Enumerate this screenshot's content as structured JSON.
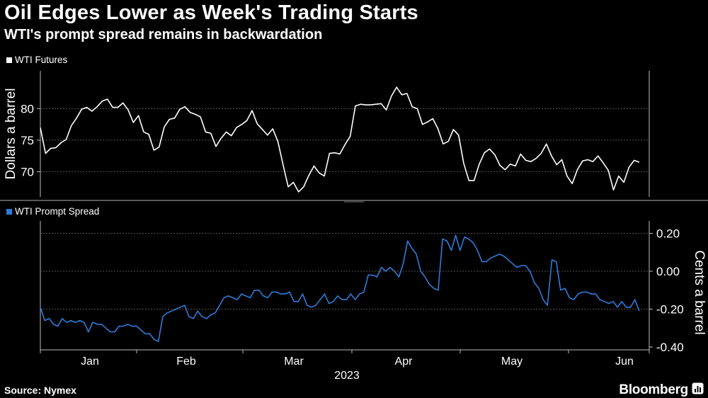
{
  "title": "Oil Edges Lower as Week's Trading Starts",
  "subtitle": "WTI's prompt spread remains in backwardation",
  "source": "Source: Nymex",
  "brand": "Bloomberg",
  "colors": {
    "background": "#000000",
    "futures": "#ffffff",
    "spread": "#2f7bd9",
    "grid": "#555555"
  },
  "chart_data": [
    {
      "type": "line",
      "series": [
        {
          "name": "WTI Futures",
          "color": "#ffffff",
          "values": [
            77.0,
            72.9,
            73.7,
            73.8,
            74.6,
            75.1,
            77.3,
            78.5,
            79.9,
            80.2,
            79.6,
            80.3,
            81.2,
            81.5,
            80.2,
            80.2,
            80.9,
            79.8,
            77.8,
            78.9,
            76.3,
            75.9,
            73.4,
            73.9,
            77.1,
            78.3,
            78.5,
            79.9,
            80.3,
            79.4,
            79.1,
            78.7,
            76.3,
            76.1,
            74.0,
            75.3,
            76.3,
            75.7,
            77.0,
            77.5,
            78.1,
            79.7,
            77.6,
            76.7,
            75.8,
            76.8,
            74.8,
            71.1,
            67.6,
            68.3,
            66.8,
            67.6,
            69.4,
            70.9,
            69.8,
            69.3,
            72.9,
            73.0,
            72.8,
            74.3,
            75.6,
            80.4,
            80.7,
            80.6,
            80.6,
            80.7,
            80.8,
            79.8,
            82.0,
            83.4,
            82.2,
            82.4,
            80.3,
            80.0,
            77.5,
            77.9,
            78.4,
            76.8,
            74.4,
            74.8,
            76.7,
            75.8,
            71.3,
            68.6,
            68.6,
            71.2,
            73.0,
            73.6,
            72.7,
            71.0,
            70.3,
            71.2,
            70.9,
            72.8,
            71.8,
            71.6,
            72.1,
            72.9,
            74.4,
            72.5,
            71.1,
            71.9,
            69.3,
            68.1,
            70.3,
            71.7,
            71.9,
            71.6,
            72.5,
            71.4,
            70.2,
            67.1,
            69.3,
            68.3,
            70.7,
            71.8,
            71.5
          ]
        }
      ],
      "ylabel": "Dollars a barrel",
      "yticks": [
        70,
        75,
        80
      ],
      "ylim": [
        66,
        86
      ]
    },
    {
      "type": "line",
      "series": [
        {
          "name": "WTI Prompt Spread",
          "color": "#2f7bd9",
          "values": [
            -0.19,
            -0.26,
            -0.25,
            -0.28,
            -0.29,
            -0.25,
            -0.27,
            -0.26,
            -0.27,
            -0.26,
            -0.27,
            -0.32,
            -0.27,
            -0.28,
            -0.28,
            -0.3,
            -0.32,
            -0.32,
            -0.29,
            -0.29,
            -0.28,
            -0.29,
            -0.29,
            -0.31,
            -0.33,
            -0.33,
            -0.36,
            -0.37,
            -0.24,
            -0.22,
            -0.21,
            -0.2,
            -0.19,
            -0.18,
            -0.24,
            -0.25,
            -0.21,
            -0.24,
            -0.25,
            -0.23,
            -0.22,
            -0.18,
            -0.14,
            -0.13,
            -0.14,
            -0.15,
            -0.12,
            -0.13,
            -0.14,
            -0.1,
            -0.1,
            -0.13,
            -0.14,
            -0.11,
            -0.11,
            -0.12,
            -0.12,
            -0.11,
            -0.16,
            -0.16,
            -0.12,
            -0.18,
            -0.19,
            -0.18,
            -0.15,
            -0.12,
            -0.17,
            -0.16,
            -0.13,
            -0.15,
            -0.15,
            -0.12,
            -0.15,
            -0.12,
            -0.11,
            -0.02,
            -0.02,
            -0.03,
            0.02,
            0.0,
            0.02,
            0.0,
            -0.03,
            0.04,
            0.16,
            0.12,
            0.09,
            0.0,
            -0.03,
            -0.07,
            -0.09,
            -0.1,
            0.17,
            0.16,
            0.11,
            0.19,
            0.11,
            0.18,
            0.17,
            0.15,
            0.11,
            0.05,
            0.05,
            0.07,
            0.08,
            0.09,
            0.08,
            0.06,
            0.04,
            0.02,
            0.03,
            0.03,
            0.0,
            -0.06,
            -0.09,
            -0.15,
            -0.18,
            0.06,
            0.05,
            -0.1,
            -0.09,
            -0.14,
            -0.15,
            -0.12,
            -0.11,
            -0.11,
            -0.12,
            -0.12,
            -0.15,
            -0.16,
            -0.17,
            -0.16,
            -0.19,
            -0.16,
            -0.19,
            -0.19,
            -0.15,
            -0.21
          ]
        }
      ],
      "ylabel": "Cents a barrel",
      "yticks": [
        "0.20",
        "0.00",
        "-0.20",
        "-0.40"
      ],
      "ylim": [
        -0.41,
        0.22
      ]
    }
  ],
  "xaxis": {
    "months": [
      "Jan",
      "Feb",
      "Mar",
      "Apr",
      "May",
      "Jun"
    ],
    "year": "2023"
  }
}
